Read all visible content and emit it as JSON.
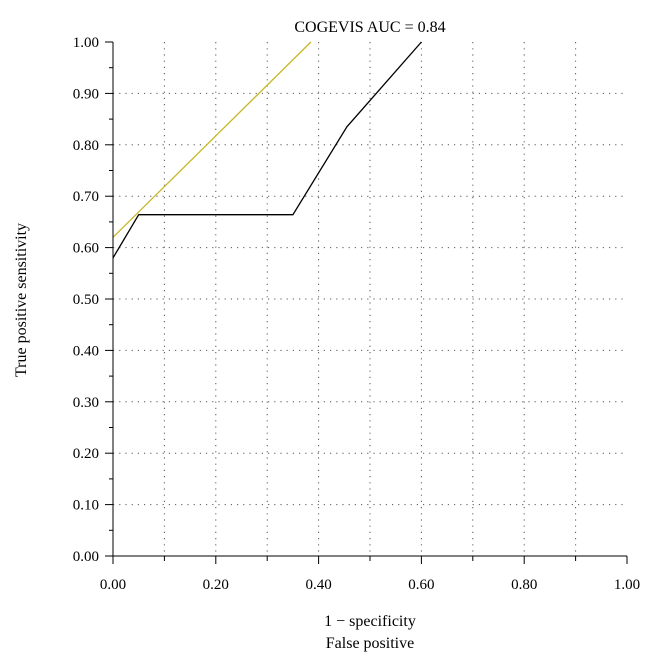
{
  "chart_data": {
    "type": "line",
    "title": "COGEVIS AUC = 0.84",
    "xlabel_line1": "1 − specificity",
    "xlabel_line2": "False positive",
    "ylabel": "True positive sensitivity",
    "xlim": [
      0,
      1
    ],
    "ylim": [
      0,
      1
    ],
    "x_ticks": [
      0,
      0.2,
      0.4,
      0.6,
      0.8,
      1.0
    ],
    "x_tick_labels": [
      "0.00",
      "0.20",
      "0.40",
      "0.60",
      "0.80",
      "1.00"
    ],
    "x_minor_ticks": [
      0.1,
      0.3,
      0.5,
      0.7,
      0.9
    ],
    "y_ticks": [
      0,
      0.1,
      0.2,
      0.3,
      0.4,
      0.5,
      0.6,
      0.7,
      0.8,
      0.9,
      1.0
    ],
    "y_tick_labels": [
      "0.00",
      "0.10",
      "0.20",
      "0.30",
      "0.40",
      "0.50",
      "0.60",
      "0.70",
      "0.80",
      "0.90",
      "1.00"
    ],
    "grid": true,
    "series": [
      {
        "color": "#000000",
        "x": [
          0,
          0.05,
          0.35,
          0.455,
          0.6
        ],
        "y": [
          0.58,
          0.664,
          0.664,
          0.835,
          1.0
        ]
      },
      {
        "color": "#c9b625",
        "x": [
          0,
          0.385
        ],
        "y": [
          0.62,
          1.0
        ]
      }
    ]
  }
}
